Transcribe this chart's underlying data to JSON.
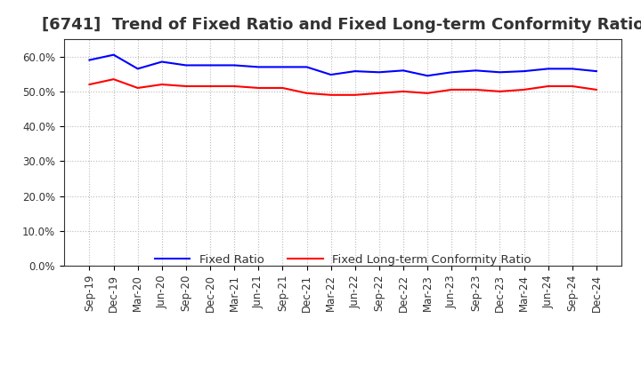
{
  "title": "[6741]  Trend of Fixed Ratio and Fixed Long-term Conformity Ratio",
  "x_labels": [
    "Sep-19",
    "Dec-19",
    "Mar-20",
    "Jun-20",
    "Sep-20",
    "Dec-20",
    "Mar-21",
    "Jun-21",
    "Sep-21",
    "Dec-21",
    "Mar-22",
    "Jun-22",
    "Sep-22",
    "Dec-22",
    "Mar-23",
    "Jun-23",
    "Sep-23",
    "Dec-23",
    "Mar-24",
    "Jun-24",
    "Sep-24",
    "Dec-24"
  ],
  "fixed_ratio": [
    59.0,
    60.5,
    56.5,
    58.5,
    57.5,
    57.5,
    57.5,
    57.0,
    57.0,
    57.0,
    54.8,
    55.8,
    55.5,
    56.0,
    54.5,
    55.5,
    56.0,
    55.5,
    55.8,
    56.5,
    56.5,
    55.8
  ],
  "fixed_lt_ratio": [
    52.0,
    53.5,
    51.0,
    52.0,
    51.5,
    51.5,
    51.5,
    51.0,
    51.0,
    49.5,
    49.0,
    49.0,
    49.5,
    50.0,
    49.5,
    50.5,
    50.5,
    50.0,
    50.5,
    51.5,
    51.5,
    50.5
  ],
  "fixed_ratio_color": "#0000FF",
  "fixed_lt_ratio_color": "#FF0000",
  "ylim": [
    0,
    65
  ],
  "yticks": [
    0,
    10,
    20,
    30,
    40,
    50,
    60
  ],
  "ytick_labels": [
    "0.0%",
    "10.0%",
    "20.0%",
    "30.0%",
    "40.0%",
    "50.0%",
    "60.0%"
  ],
  "bg_color": "#FFFFFF",
  "plot_bg_color": "#FFFFFF",
  "legend_fixed_ratio": "Fixed Ratio",
  "legend_fixed_lt": "Fixed Long-term Conformity Ratio",
  "title_fontsize": 13,
  "title_color": "#333333",
  "axis_fontsize": 8.5,
  "legend_fontsize": 9.5,
  "line_width": 1.5,
  "grid_color": "#BBBBBB",
  "spine_color": "#333333"
}
